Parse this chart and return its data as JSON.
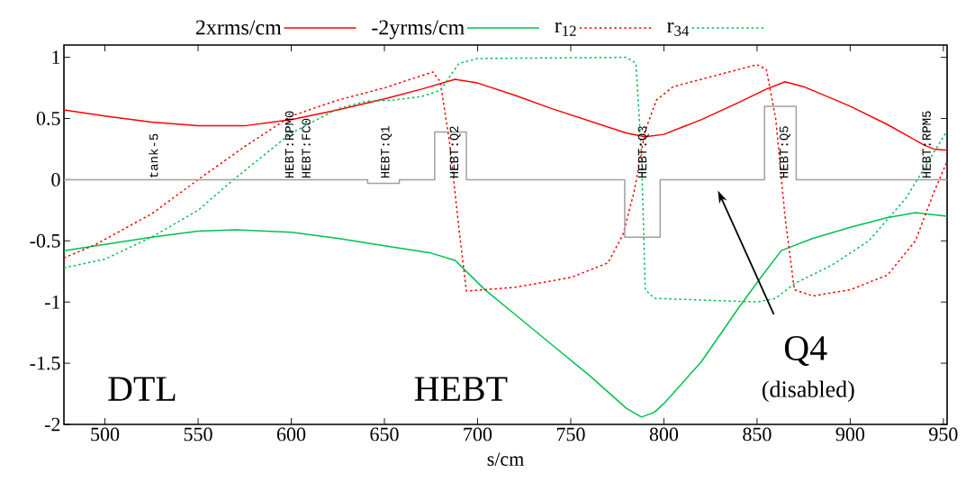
{
  "chart_data": {
    "type": "line",
    "xlabel": "s/cm",
    "xlim": [
      478,
      952
    ],
    "ylim": [
      -2,
      1.1
    ],
    "xticks": [
      500,
      550,
      600,
      650,
      700,
      750,
      800,
      850,
      900,
      950
    ],
    "yticks": [
      -2,
      -1.5,
      -1,
      -0.5,
      0,
      0.5,
      1
    ],
    "legend": "top",
    "grid": false,
    "series": [
      {
        "name": "2xrms/cm",
        "color": "#ff0000",
        "line_style": "solid",
        "x": [
          478,
          500,
          525,
          550,
          575,
          600,
          625,
          650,
          670,
          688,
          700,
          720,
          740,
          760,
          780,
          790,
          800,
          820,
          840,
          855,
          865,
          875,
          900,
          920,
          940,
          945,
          952
        ],
        "values": [
          0.57,
          0.52,
          0.47,
          0.44,
          0.44,
          0.49,
          0.57,
          0.66,
          0.74,
          0.82,
          0.79,
          0.69,
          0.58,
          0.48,
          0.38,
          0.35,
          0.37,
          0.49,
          0.63,
          0.74,
          0.8,
          0.76,
          0.6,
          0.45,
          0.28,
          0.25,
          0.24
        ]
      },
      {
        "name": "-2yrms/cm",
        "color": "#00c050",
        "line_style": "solid",
        "x": [
          478,
          500,
          525,
          550,
          570,
          600,
          625,
          650,
          675,
          688,
          704,
          720,
          740,
          760,
          780,
          788,
          795,
          800,
          820,
          840,
          852,
          863,
          880,
          900,
          920,
          935,
          952
        ],
        "values": [
          -0.58,
          -0.53,
          -0.47,
          -0.42,
          -0.41,
          -0.43,
          -0.48,
          -0.54,
          -0.6,
          -0.66,
          -0.9,
          -1.1,
          -1.35,
          -1.6,
          -1.87,
          -1.94,
          -1.9,
          -1.83,
          -1.49,
          -1.05,
          -0.8,
          -0.58,
          -0.48,
          -0.39,
          -0.31,
          -0.27,
          -0.3
        ]
      },
      {
        "name": "r$_{12}$",
        "color": "#ff0000",
        "line_style": "dotted",
        "x": [
          478,
          495,
          525,
          550,
          575,
          600,
          625,
          650,
          676,
          680,
          685,
          690,
          694,
          720,
          750,
          770,
          778,
          784,
          790,
          796,
          805,
          820,
          850,
          855,
          860,
          865,
          870,
          880,
          900,
          920,
          935,
          945,
          952
        ],
        "values": [
          -0.64,
          -0.53,
          -0.28,
          0,
          0.27,
          0.52,
          0.65,
          0.75,
          0.88,
          0.8,
          0.3,
          -0.4,
          -0.91,
          -0.88,
          -0.8,
          -0.68,
          -0.45,
          -0.1,
          0.4,
          0.65,
          0.76,
          0.82,
          0.94,
          0.9,
          0.5,
          -0.3,
          -0.9,
          -0.95,
          -0.9,
          -0.78,
          -0.5,
          -0.1,
          0.15
        ]
      },
      {
        "name": "r$_{34}$",
        "color": "#00c050",
        "line_style": "dotted",
        "x": [
          478,
          500,
          525,
          550,
          569,
          600,
          625,
          640,
          655,
          670,
          680,
          690,
          700,
          780,
          785,
          788,
          790,
          795,
          850,
          860,
          870,
          890,
          910,
          930,
          952
        ],
        "values": [
          -0.72,
          -0.65,
          -0.47,
          -0.25,
          0,
          0.38,
          0.58,
          0.64,
          0.65,
          0.68,
          0.73,
          0.95,
          0.99,
          1.0,
          0.95,
          0.2,
          -0.9,
          -0.97,
          -1.0,
          -0.97,
          -0.85,
          -0.7,
          -0.5,
          -0.15,
          0.4
        ]
      },
      {
        "color": "#a0a0a0",
        "line_style": "solid",
        "x": [
          478,
          641,
          641,
          658,
          658,
          677,
          677,
          694,
          694,
          779,
          779,
          798,
          798,
          854,
          854,
          871,
          871,
          952
        ],
        "values": [
          0,
          0,
          -0.03,
          -0.03,
          0,
          0,
          0.39,
          0.39,
          0,
          0,
          -0.47,
          -0.47,
          0,
          0,
          0.6,
          0.6,
          0,
          0
        ]
      }
    ],
    "annotations": [
      {
        "text": "tank-5",
        "x": 526,
        "y": 0
      },
      {
        "text": "HEBT:RPM0",
        "x": 599,
        "y": 0
      },
      {
        "text": "HEBT:FC0",
        "x": 608,
        "y": 0
      },
      {
        "text": "HEBT:Q1",
        "x": 651,
        "y": 0
      },
      {
        "text": "HEBT:Q2",
        "x": 688,
        "y": 0
      },
      {
        "text": "HEBT:Q3",
        "x": 789,
        "y": 0
      },
      {
        "text": "HEBT:Q5",
        "x": 865,
        "y": 0
      },
      {
        "text": "HEBT:RPM5",
        "x": 941,
        "y": 0
      },
      "DTL",
      "HEBT",
      "Q4",
      "(disabled)"
    ]
  }
}
